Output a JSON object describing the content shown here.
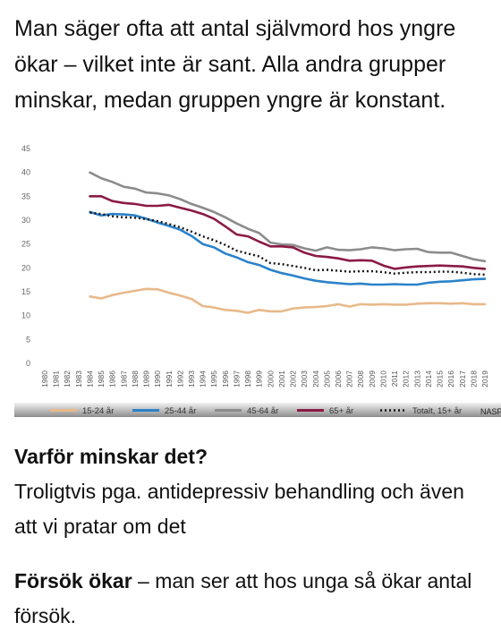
{
  "intro": {
    "text": "Man säger ofta att antal självmord hos yngre ökar – vilket inte är sant. Alla andra grupper minskar, medan gruppen yngre är konstant."
  },
  "chart_data": {
    "type": "line",
    "title": "",
    "xlabel": "",
    "ylabel": "",
    "ylim": [
      0,
      45
    ],
    "yticks": [
      0,
      5,
      10,
      15,
      20,
      25,
      30,
      35,
      40,
      45
    ],
    "grid": false,
    "legend_position": "bottom",
    "source_label": "NASP",
    "categories": [
      "1980",
      "1981",
      "1982",
      "1983",
      "1984",
      "1985",
      "1986",
      "1987",
      "1988",
      "1989",
      "1990",
      "1991",
      "1992",
      "1993",
      "1994",
      "1995",
      "1996",
      "1997",
      "1998",
      "1999",
      "2000",
      "2001",
      "2002",
      "2003",
      "2004",
      "2005",
      "2006",
      "2007",
      "2008",
      "2009",
      "2010",
      "2011",
      "2012",
      "2013",
      "2014",
      "2015",
      "2016",
      "2017",
      "2018",
      "2019"
    ],
    "series": [
      {
        "name": "15-24 år",
        "color": "#e8b98a",
        "dash": "",
        "values": [
          null,
          null,
          null,
          null,
          14.0,
          13.6,
          14.3,
          14.8,
          15.2,
          15.6,
          15.5,
          14.8,
          14.2,
          13.5,
          12.0,
          11.7,
          11.2,
          11.0,
          10.6,
          11.2,
          10.9,
          10.9,
          11.5,
          11.7,
          11.8,
          12.0,
          12.4,
          11.9,
          12.4,
          12.3,
          12.4,
          12.3,
          12.3,
          12.5,
          12.6,
          12.6,
          12.5,
          12.6,
          12.4,
          12.4
        ]
      },
      {
        "name": "25-44 år",
        "color": "#2b82c9",
        "dash": "",
        "values": [
          null,
          null,
          null,
          null,
          31.7,
          31.0,
          31.3,
          31.2,
          31.0,
          30.3,
          29.5,
          28.8,
          28.0,
          26.7,
          25.0,
          24.3,
          23.0,
          22.2,
          21.2,
          20.6,
          19.6,
          18.9,
          18.4,
          17.8,
          17.3,
          17.0,
          16.8,
          16.6,
          16.7,
          16.5,
          16.5,
          16.6,
          16.5,
          16.5,
          16.9,
          17.1,
          17.2,
          17.4,
          17.6,
          17.7
        ]
      },
      {
        "name": "45-64 år",
        "color": "#8c8c8c",
        "dash": "",
        "values": [
          null,
          null,
          null,
          null,
          40.0,
          38.8,
          38.0,
          37.0,
          36.6,
          35.8,
          35.6,
          35.2,
          34.4,
          33.4,
          32.6,
          31.7,
          30.6,
          29.3,
          28.2,
          27.3,
          25.3,
          24.9,
          24.8,
          24.1,
          23.6,
          24.3,
          23.8,
          23.7,
          23.9,
          24.3,
          24.1,
          23.7,
          23.9,
          24.0,
          23.3,
          23.2,
          23.2,
          22.5,
          21.8,
          21.4
        ]
      },
      {
        "name": "65+ år",
        "color": "#8b1a45",
        "dash": "",
        "values": [
          null,
          null,
          null,
          null,
          35.0,
          35.0,
          34.0,
          33.6,
          33.4,
          33.0,
          33.0,
          33.2,
          32.6,
          32.0,
          31.3,
          30.3,
          28.7,
          27.0,
          26.6,
          25.5,
          24.5,
          24.5,
          24.3,
          23.2,
          22.5,
          22.3,
          22.0,
          21.5,
          21.6,
          21.5,
          20.5,
          19.8,
          20.1,
          20.3,
          20.4,
          20.5,
          20.4,
          20.3,
          20.0,
          19.8
        ]
      },
      {
        "name": "Totalt, 15+ år",
        "color": "#111111",
        "dash": "2 3",
        "values": [
          null,
          null,
          null,
          null,
          31.6,
          31.3,
          30.8,
          30.6,
          30.5,
          30.2,
          29.8,
          29.2,
          28.5,
          27.6,
          26.6,
          25.8,
          24.8,
          23.6,
          23.0,
          22.4,
          21.0,
          20.8,
          20.4,
          20.0,
          19.5,
          19.6,
          19.4,
          19.2,
          19.3,
          19.3,
          19.1,
          18.8,
          19.0,
          19.1,
          19.1,
          19.2,
          19.2,
          19.0,
          18.7,
          18.6
        ]
      }
    ]
  },
  "section": {
    "heading": "Varför minskar det?",
    "text": "Troligtvis pga. antidepressiv behandling och även att vi pratar om det",
    "emphasis": "Försök ökar",
    "rest": " – man ser att hos unga så ökar antal försök."
  }
}
